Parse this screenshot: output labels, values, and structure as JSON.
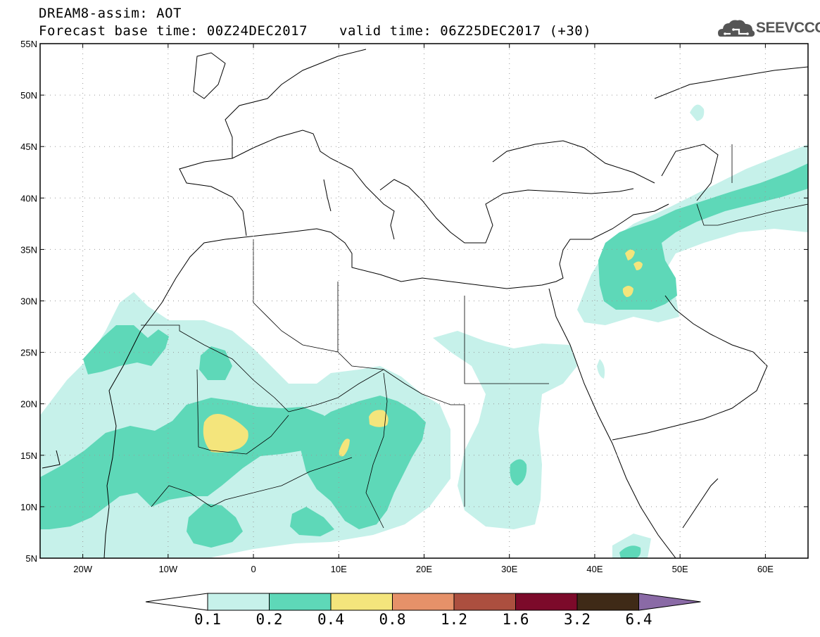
{
  "header": {
    "line1": "DREAM8-assim: AOT",
    "line2": "Forecast base time: 00Z24DEC2017",
    "valid": "valid time: 06Z25DEC2017 (+30)",
    "logo_text": "SEEVCCC"
  },
  "map": {
    "lon_range": [
      -25,
      65
    ],
    "lat_range": [
      5,
      55
    ],
    "grid": "dotted",
    "lat_labels": [
      "55N",
      "50N",
      "45N",
      "40N",
      "35N",
      "30N",
      "25N",
      "20N",
      "15N",
      "10N",
      "5N"
    ],
    "lon_labels": [
      "20W",
      "10W",
      "0",
      "10E",
      "20E",
      "30E",
      "40E",
      "50E",
      "60E"
    ]
  },
  "colorbar": {
    "levels": [
      "0.1",
      "0.2",
      "0.4",
      "0.8",
      "1.2",
      "1.6",
      "3.2",
      "6.4"
    ],
    "colors": [
      "#c6f1ea",
      "#5ed8b8",
      "#f4e57c",
      "#e69169",
      "#ac4f3f",
      "#7c0a2a",
      "#3f2a17",
      "#8a6aa6"
    ]
  }
}
